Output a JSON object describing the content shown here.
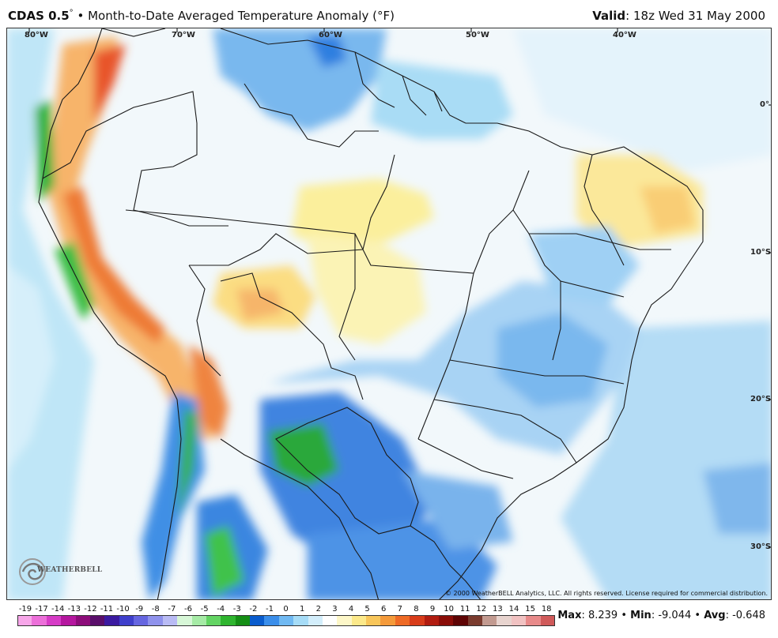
{
  "header": {
    "product": "CDAS 0.5",
    "degree_mark": "°",
    "separator": "•",
    "description": "Month-to-Date Averaged Temperature Anomaly (°F)",
    "valid_label": "Valid",
    "valid_value": ": 18z Wed 31 May 2000"
  },
  "map": {
    "longitude_labels": [
      "80°W",
      "70°W",
      "60°W",
      "50°W",
      "40°W"
    ],
    "latitude_labels": [
      "0°",
      "10°S",
      "20°S",
      "30°S"
    ],
    "copyright": "© 2000 WeatherBELL Analytics, LLC. All rights reserved. License required for commercial distribution.",
    "logo_text": "WEATHERBELL",
    "logo_icon": "swirl-logo-icon"
  },
  "colorbar": {
    "labels": [
      "-19",
      "-17",
      "-14",
      "-13",
      "-12",
      "-11",
      "-10",
      "-9",
      "-8",
      "-7",
      "-6",
      "-5",
      "-4",
      "-3",
      "-2",
      "-1",
      "0",
      "1",
      "2",
      "3",
      "4",
      "5",
      "6",
      "7",
      "8",
      "9",
      "10",
      "11",
      "12",
      "13",
      "14",
      "15",
      "18"
    ],
    "colors": [
      "#f7a6e9",
      "#ec6fd9",
      "#d63bc6",
      "#b5179f",
      "#8d0d7a",
      "#5a0e6a",
      "#3b1aa0",
      "#3f3fcb",
      "#6666e0",
      "#8f92ec",
      "#b9bbf4",
      "#d7f7d7",
      "#a6eba6",
      "#63d463",
      "#2fb52f",
      "#158e15",
      "#0a5ccd",
      "#3b8eea",
      "#70b9f2",
      "#a6dcf7",
      "#d3eefb",
      "#ffffff",
      "#fdf7c8",
      "#fce98a",
      "#f8c65a",
      "#f49a3a",
      "#ee6a25",
      "#d83c1a",
      "#b11c10",
      "#8a0d08",
      "#5e0404",
      "#7a3b2e",
      "#c29a90"
    ],
    "extra_colors": [
      "#e8d4cf",
      "#f1c2c2",
      "#e88a8a",
      "#d05a5a"
    ]
  },
  "stats": {
    "max_label": "Max",
    "max_value": ": 8.239",
    "min_label": "Min",
    "min_value": ": -9.044",
    "avg_label": "Avg",
    "avg_value": ": -0.648",
    "separator": "•"
  }
}
